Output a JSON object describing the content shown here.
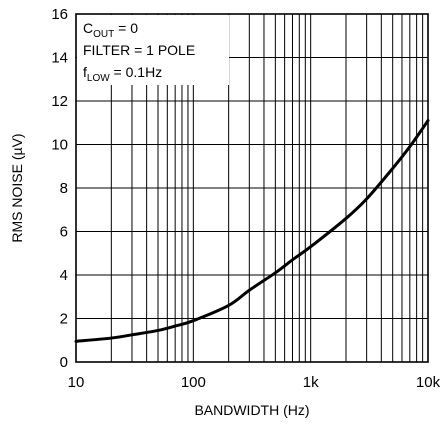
{
  "chart_data": {
    "type": "line",
    "title": "",
    "xlabel": "BANDWIDTH (Hz)",
    "ylabel": "RMS NOISE (µV)",
    "x_scale": "log",
    "xlim": [
      10,
      10000
    ],
    "ylim": [
      0,
      16
    ],
    "grid": true,
    "x_ticks": [
      {
        "value": 10,
        "label": "10"
      },
      {
        "value": 100,
        "label": "100"
      },
      {
        "value": 1000,
        "label": "1k"
      },
      {
        "value": 10000,
        "label": "10k"
      }
    ],
    "y_ticks": [
      {
        "value": 0,
        "label": "0"
      },
      {
        "value": 2,
        "label": "2"
      },
      {
        "value": 4,
        "label": "4"
      },
      {
        "value": 6,
        "label": "6"
      },
      {
        "value": 8,
        "label": "8"
      },
      {
        "value": 10,
        "label": "10"
      },
      {
        "value": 12,
        "label": "12"
      },
      {
        "value": 14,
        "label": "14"
      },
      {
        "value": 16,
        "label": "16"
      }
    ],
    "annotations": [
      {
        "main": "C",
        "sub": "OUT",
        "rest": " = 0"
      },
      {
        "main": "FILTER = 1 POLE",
        "sub": "",
        "rest": ""
      },
      {
        "main": "f",
        "sub": "LOW",
        "rest": " = 0.1Hz"
      }
    ],
    "series": [
      {
        "color": "#000000",
        "x": [
          10,
          20,
          30,
          50,
          70,
          100,
          200,
          300,
          500,
          700,
          1000,
          2000,
          3000,
          5000,
          7000,
          10000
        ],
        "y": [
          0.95,
          1.1,
          1.25,
          1.45,
          1.65,
          1.9,
          2.6,
          3.3,
          4.1,
          4.7,
          5.3,
          6.6,
          7.5,
          8.9,
          9.9,
          11.1
        ]
      }
    ]
  }
}
